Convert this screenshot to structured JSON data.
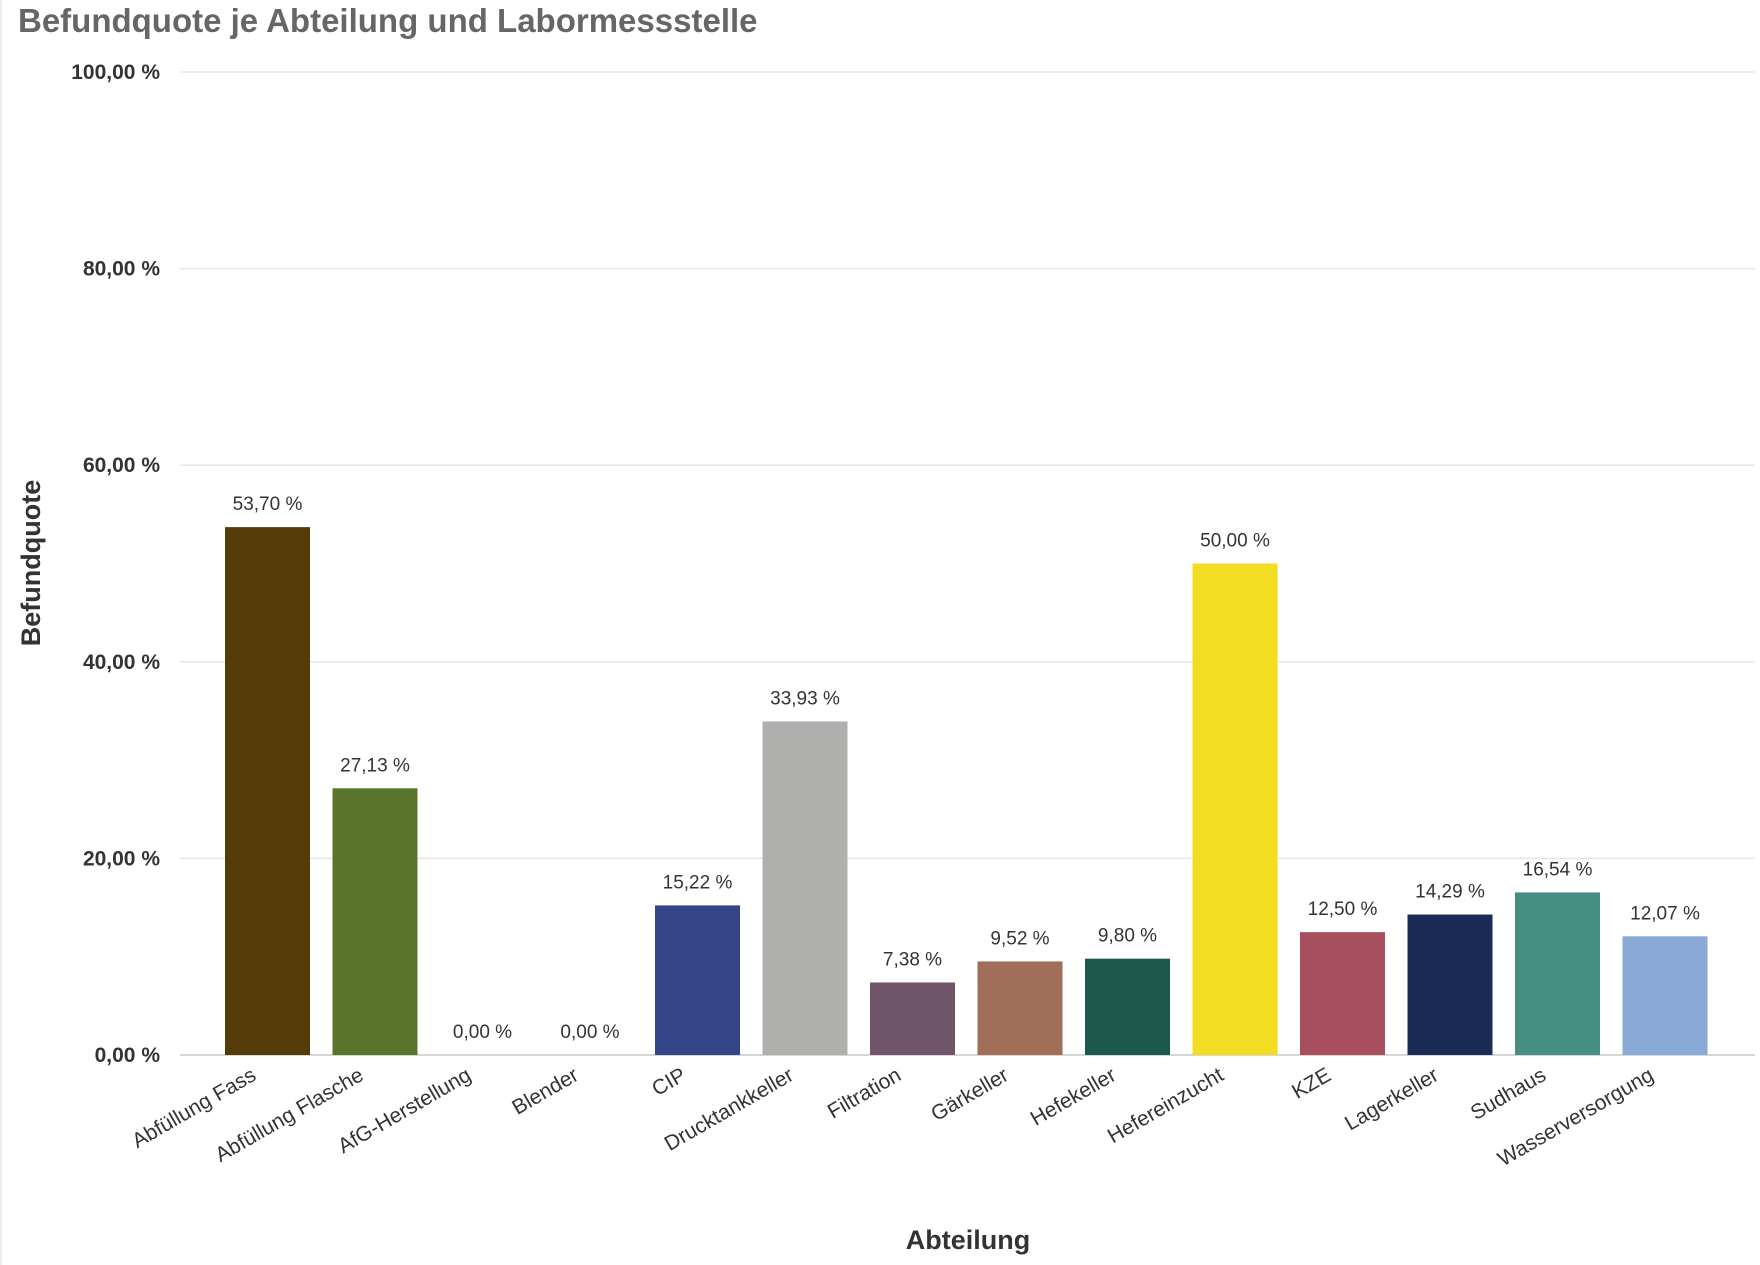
{
  "chart_data": {
    "type": "bar",
    "title": "Befundquote je Abteilung und Labormessstelle",
    "xlabel": "Abteilung",
    "ylabel": "Befundquote",
    "ylim": [
      0,
      100
    ],
    "y_ticks": [
      0,
      20,
      40,
      60,
      80,
      100
    ],
    "y_tick_labels": [
      "0,00 %",
      "20,00 %",
      "40,00 %",
      "60,00 %",
      "80,00 %",
      "100,00 %"
    ],
    "grid": true,
    "legend": "none",
    "categories": [
      "Abfüllung Fass",
      "Abfüllung Flasche",
      "AfG-Herstellung",
      "Blender",
      "CIP",
      "Drucktankkeller",
      "Filtration",
      "Gärkeller",
      "Hefekeller",
      "Hefereinzucht",
      "KZE",
      "Lagerkeller",
      "Sudhaus",
      "Wasserversorgung"
    ],
    "values": [
      53.7,
      27.13,
      0.0,
      0.0,
      15.22,
      33.93,
      7.38,
      9.52,
      9.8,
      50.0,
      12.5,
      14.29,
      16.54,
      12.07
    ],
    "value_labels": [
      "53,70 %",
      "27,13 %",
      "0,00 %",
      "0,00 %",
      "15,22 %",
      "33,93 %",
      "7,38 %",
      "9,52 %",
      "9,80 %",
      "50,00 %",
      "12,50 %",
      "14,29 %",
      "16,54 %",
      "12,07 %"
    ],
    "colors": [
      "#533c07",
      "#5a742c",
      "#cccccc",
      "#cccccc",
      "#364587",
      "#afafad",
      "#6f546a",
      "#a16f59",
      "#1c584c",
      "#f3dd23",
      "#a74e5f",
      "#1a2b55",
      "#468e82",
      "#8aa9d6"
    ]
  }
}
